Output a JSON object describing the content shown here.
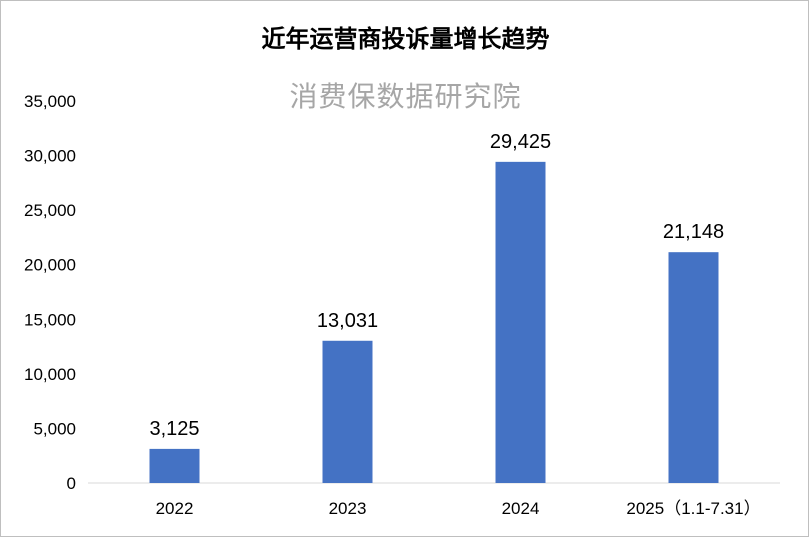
{
  "chart_data": {
    "type": "bar",
    "title": "近年运营商投诉量增长趋势",
    "watermark": "消费保数据研究院",
    "categories": [
      "2022",
      "2023",
      "2024",
      "2025（1.1-7.31）"
    ],
    "values": [
      3125,
      13031,
      29425,
      21148
    ],
    "data_labels": [
      "3,125",
      "13,031",
      "29,425",
      "21,148"
    ],
    "y_ticks": [
      "0",
      "5,000",
      "10,000",
      "15,000",
      "20,000",
      "25,000",
      "30,000",
      "35,000"
    ],
    "ylim": [
      0,
      35000
    ],
    "xlabel": "",
    "ylabel": "",
    "grid": false,
    "bar_color": "#4472c4"
  }
}
